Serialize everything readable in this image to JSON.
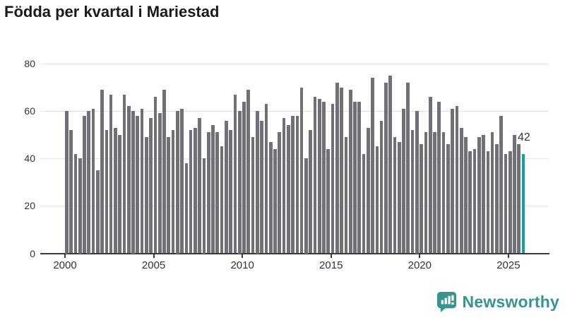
{
  "title": "Födda per kvartal i Mariestad",
  "colors": {
    "bar": "#707077",
    "highlight": "#0aa2a2",
    "grid": "#e4e4e4",
    "axis": "#3a3a3a",
    "text": "#333333",
    "title_text": "#1a1a1a",
    "logo": "#38948f"
  },
  "chart_data": {
    "type": "bar",
    "title": "Födda per kvartal i Mariestad",
    "x_start_year": 2000,
    "frequency": "quarterly",
    "values": [
      60,
      52,
      42,
      40,
      58,
      60,
      61,
      35,
      69,
      52,
      67,
      53,
      50,
      67,
      62,
      60,
      58,
      61,
      49,
      57,
      66,
      59,
      69,
      49,
      52,
      60,
      61,
      38,
      52,
      53,
      57,
      40,
      51,
      54,
      51,
      45,
      56,
      52,
      67,
      60,
      64,
      69,
      49,
      60,
      56,
      63,
      47,
      44,
      51,
      57,
      54,
      58,
      58,
      70,
      40,
      52,
      66,
      65,
      64,
      44,
      63,
      72,
      70,
      49,
      69,
      64,
      64,
      42,
      53,
      74,
      45,
      56,
      72,
      75,
      49,
      47,
      61,
      72,
      52,
      60,
      46,
      51,
      66,
      51,
      64,
      51,
      46,
      61,
      62,
      53,
      49,
      43,
      44,
      49,
      50,
      43,
      51,
      46,
      58,
      42,
      43,
      50,
      46,
      42
    ],
    "x_tick_labels": [
      "2000",
      "2005",
      "2010",
      "2015",
      "2020",
      "2025"
    ],
    "y_tick_values": [
      0,
      20,
      40,
      60,
      80
    ],
    "ylim": [
      0,
      80
    ],
    "grid": "horizontal",
    "legend": "none",
    "highlight_last_bar": true,
    "last_value_label": "42"
  },
  "logo": {
    "text": "Newsworthy",
    "icon": "newsworthy-chart-bubble-icon"
  }
}
